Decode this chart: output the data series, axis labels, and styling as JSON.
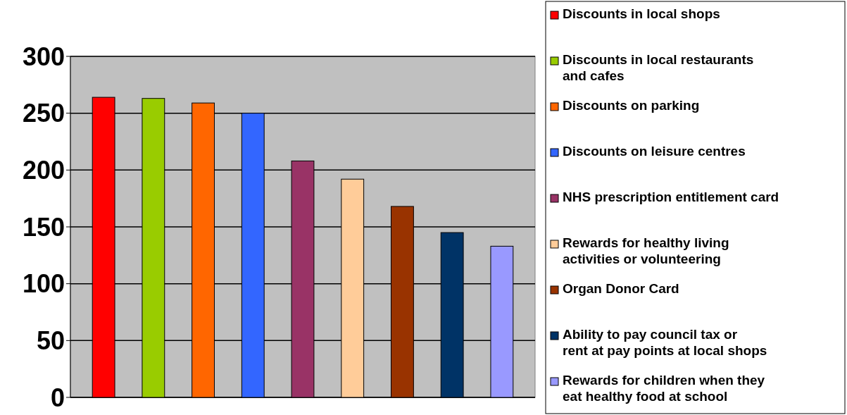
{
  "chart_data": {
    "type": "bar",
    "categories": [
      null,
      null,
      null,
      null,
      null,
      null,
      null,
      null,
      null
    ],
    "series": [
      {
        "name": "Discounts in local shops",
        "color": "#ff0000",
        "values": [
          264,
          null,
          null,
          null,
          null,
          null,
          null,
          null,
          null
        ]
      },
      {
        "name": "Discounts in local restaurants and cafes",
        "color": "#99cc00",
        "values": [
          null,
          263,
          null,
          null,
          null,
          null,
          null,
          null,
          null
        ]
      },
      {
        "name": "Discounts on parking",
        "color": "#ff6600",
        "values": [
          null,
          null,
          259,
          null,
          null,
          null,
          null,
          null,
          null
        ]
      },
      {
        "name": "Discounts on leisure centres",
        "color": "#3366ff",
        "values": [
          null,
          null,
          null,
          250,
          null,
          null,
          null,
          null,
          null
        ]
      },
      {
        "name": "NHS prescription entitlement card",
        "color": "#993366",
        "values": [
          null,
          null,
          null,
          null,
          208,
          null,
          null,
          null,
          null
        ]
      },
      {
        "name": "Rewards for healthy living activities or volunteering",
        "color": "#ffcc99",
        "values": [
          null,
          null,
          null,
          null,
          null,
          192,
          null,
          null,
          null
        ]
      },
      {
        "name": "Organ Donor Card",
        "color": "#993300",
        "values": [
          null,
          null,
          null,
          null,
          null,
          null,
          168,
          null,
          null
        ]
      },
      {
        "name": "Ability to pay council tax or rent at pay points at local shops",
        "color": "#003366",
        "values": [
          null,
          null,
          null,
          null,
          null,
          null,
          null,
          145,
          null
        ]
      },
      {
        "name": "Rewards for children when they eat healthy food at school",
        "color": "#9999ff",
        "values": [
          null,
          null,
          null,
          null,
          null,
          null,
          null,
          null,
          133
        ]
      }
    ],
    "ylim": [
      0,
      300
    ],
    "yticks": [
      0,
      50,
      100,
      150,
      200,
      250,
      300
    ],
    "grid": "y",
    "legend": "right"
  }
}
